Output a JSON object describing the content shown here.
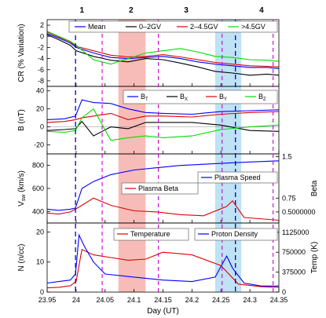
{
  "chart_data": {
    "type": "line",
    "shared_x": {
      "label": "Day (UT)",
      "range": [
        23.95,
        24.35
      ],
      "ticks": [
        "23.95",
        "24",
        "24.05",
        "24.1",
        "24.15",
        "24.2",
        "24.25",
        "24.3",
        "24.35"
      ],
      "tick_values": [
        23.95,
        24.0,
        24.05,
        24.1,
        24.15,
        24.2,
        24.25,
        24.3,
        24.35
      ]
    },
    "region_labels": [
      {
        "text": "1",
        "x": 24.01
      },
      {
        "text": "2",
        "x": 24.095
      },
      {
        "text": "3",
        "x": 24.19
      },
      {
        "text": "4",
        "x": 24.32
      }
    ],
    "shaded_intervals": [
      {
        "x": [
          24.073,
          24.12
        ],
        "color": "#f4a6a0"
      },
      {
        "x": [
          24.24,
          24.285
        ],
        "color": "#a9d8f0"
      }
    ],
    "blue_dashed_lines": [
      23.999,
      24.275
    ],
    "magenta_dashed_lines": [
      24.045,
      24.142,
      24.252,
      24.34
    ],
    "panels": [
      {
        "id": "cr",
        "ylabel": "CR (% Variation)",
        "ylim": [
          -9,
          3
        ],
        "yticks": [
          "2",
          "0",
          "-2",
          "-4",
          "-6",
          "-8"
        ],
        "ytick_values": [
          2,
          0,
          -2,
          -4,
          -6,
          -8
        ],
        "legend": [
          "Mean",
          "0–2GV",
          "2–4.5GV",
          ">4.5GV"
        ],
        "series": [
          {
            "name": "Mean",
            "color": "#0000ff",
            "x": [
              23.95,
              23.97,
              23.99,
              24.0,
              24.03,
              24.06,
              24.09,
              24.12,
              24.15,
              24.18,
              24.21,
              24.24,
              24.27,
              24.3,
              24.33,
              24.35
            ],
            "y": [
              0.5,
              -0.3,
              -1.2,
              -2.0,
              -3.0,
              -3.8,
              -4.0,
              -3.8,
              -3.6,
              -4.0,
              -4.6,
              -5.0,
              -5.3,
              -5.6,
              -5.6,
              -5.8
            ]
          },
          {
            "name": "0–2GV",
            "color": "#000000",
            "x": [
              23.95,
              23.97,
              23.99,
              24.0,
              24.03,
              24.06,
              24.09,
              24.12,
              24.15,
              24.18,
              24.21,
              24.24,
              24.27,
              24.3,
              24.33,
              24.35
            ],
            "y": [
              0.3,
              -0.6,
              -1.6,
              -2.6,
              -3.6,
              -4.3,
              -4.6,
              -4.0,
              -4.2,
              -4.8,
              -5.5,
              -6.3,
              -6.6,
              -7.0,
              -6.8,
              -7.0
            ]
          },
          {
            "name": "2–4.5GV",
            "color": "#e00000",
            "x": [
              23.95,
              23.97,
              23.99,
              24.0,
              24.03,
              24.06,
              24.09,
              24.12,
              24.15,
              24.18,
              24.21,
              24.24,
              24.27,
              24.3,
              24.33,
              24.35
            ],
            "y": [
              0.8,
              -0.1,
              -1.0,
              -1.8,
              -2.6,
              -3.4,
              -3.7,
              -3.6,
              -3.3,
              -3.7,
              -4.2,
              -4.7,
              -5.0,
              -5.3,
              -5.4,
              -5.5
            ]
          },
          {
            "name": ">4.5GV",
            "color": "#00dd00",
            "x": [
              23.95,
              23.97,
              23.99,
              24.0,
              24.03,
              24.06,
              24.09,
              24.12,
              24.15,
              24.18,
              24.21,
              24.24,
              24.27,
              24.3,
              24.33,
              24.35
            ],
            "y": [
              0.9,
              0.0,
              -0.9,
              -1.6,
              -4.2,
              -5.0,
              -4.0,
              -3.0,
              -2.6,
              -2.2,
              -2.8,
              -3.6,
              -3.8,
              -4.2,
              -4.3,
              -4.5
            ]
          }
        ]
      },
      {
        "id": "b",
        "ylabel": "B (nT)",
        "ylim": [
          -30,
          45
        ],
        "yticks": [
          "40",
          "20",
          "0",
          "-20"
        ],
        "ytick_values": [
          40,
          20,
          0,
          -20
        ],
        "legend": [
          "B_T",
          "B_X",
          "B_Y",
          "B_Z"
        ],
        "legend_display": [
          {
            "base": "B",
            "sub": "T"
          },
          {
            "base": "B",
            "sub": "X"
          },
          {
            "base": "B",
            "sub": "Y"
          },
          {
            "base": "B",
            "sub": "Z"
          }
        ],
        "series": [
          {
            "name": "B_T",
            "color": "#0000ff",
            "x": [
              23.95,
              23.98,
              23.999,
              24.01,
              24.03,
              24.06,
              24.09,
              24.12,
              24.15,
              24.2,
              24.25,
              24.3,
              24.35
            ],
            "y": [
              8,
              9,
              12,
              30,
              27,
              26,
              20,
              16,
              15,
              14,
              17,
              18,
              19
            ]
          },
          {
            "name": "B_X",
            "color": "#000000",
            "x": [
              23.95,
              23.98,
              23.999,
              24.01,
              24.03,
              24.06,
              24.09,
              24.12,
              24.15,
              24.2,
              24.25,
              24.3,
              24.35
            ],
            "y": [
              -4,
              -3,
              -2,
              6,
              -10,
              0,
              -2,
              5,
              5,
              5,
              2,
              -4,
              -5
            ]
          },
          {
            "name": "B_Y",
            "color": "#e00000",
            "x": [
              23.95,
              23.98,
              23.999,
              24.01,
              24.03,
              24.06,
              24.09,
              24.12,
              24.15,
              24.2,
              24.25,
              24.3,
              24.35
            ],
            "y": [
              5,
              6,
              8,
              10,
              12,
              15,
              8,
              12,
              12,
              11,
              14,
              16,
              17
            ]
          },
          {
            "name": "B_Z",
            "color": "#00dd00",
            "x": [
              23.95,
              23.98,
              23.999,
              24.01,
              24.03,
              24.06,
              24.09,
              24.12,
              24.15,
              24.2,
              24.25,
              24.3,
              24.35
            ],
            "y": [
              -5,
              -6,
              -4,
              10,
              20,
              -15,
              -12,
              -10,
              -12,
              -10,
              -3,
              0,
              2
            ]
          }
        ]
      },
      {
        "id": "v",
        "ylabel": "V_sw (km/s)",
        "ylim": [
          300,
          900
        ],
        "yticks": [
          "800",
          "600",
          "400"
        ],
        "ytick_values": [
          800,
          600,
          400
        ],
        "right_ylabel": "Beta",
        "right_ylim": [
          0.3,
          1.55
        ],
        "right_yticks": [
          "1.5",
          "0.75",
          "0.5000000"
        ],
        "right_ytick_values": [
          1.5,
          0.75,
          0.5
        ],
        "legend": [
          "Plasma Speed",
          "Plasma Beta"
        ],
        "series": [
          {
            "name": "Plasma Speed",
            "color": "#0000ff",
            "axis": "left",
            "x": [
              23.95,
              23.97,
              23.99,
              23.999,
              24.01,
              24.03,
              24.06,
              24.1,
              24.14,
              24.18,
              24.22,
              24.26,
              24.3,
              24.35
            ],
            "y": [
              420,
              410,
              420,
              430,
              600,
              660,
              720,
              760,
              780,
              800,
              810,
              820,
              830,
              840
            ]
          },
          {
            "name": "Plasma Beta",
            "color": "#e00000",
            "axis": "right",
            "x": [
              23.95,
              23.97,
              23.99,
              23.999,
              24.01,
              24.03,
              24.06,
              24.1,
              24.14,
              24.18,
              24.22,
              24.26,
              24.27,
              24.29,
              24.35
            ],
            "y": [
              0.48,
              0.46,
              0.5,
              0.55,
              0.62,
              0.75,
              0.62,
              0.52,
              0.5,
              0.45,
              0.43,
              0.6,
              0.7,
              0.4,
              0.35
            ]
          }
        ]
      },
      {
        "id": "n",
        "ylabel": "N (n/cc)",
        "ylim": [
          0,
          23
        ],
        "yticks": [
          "20",
          "10",
          "0"
        ],
        "ytick_values": [
          20,
          10,
          0
        ],
        "right_ylabel": "Temp (K)",
        "right_ylim": [
          0,
          1300000
        ],
        "right_yticks": [
          "1125000",
          "750000",
          "375000",
          "0"
        ],
        "right_ytick_values": [
          1125000,
          750000,
          375000,
          0
        ],
        "legend": [
          "Temperature",
          "Proton Density"
        ],
        "series": [
          {
            "name": "Temperature",
            "color": "#e00000",
            "axis": "right",
            "x": [
              23.95,
              23.97,
              23.99,
              24.0,
              24.01,
              24.03,
              24.06,
              24.09,
              24.12,
              24.15,
              24.2,
              24.25,
              24.28,
              24.32,
              24.35
            ],
            "y": [
              80000,
              90000,
              120000,
              200000,
              800000,
              700000,
              650000,
              600000,
              620000,
              750000,
              700000,
              500000,
              150000,
              100000,
              90000
            ]
          },
          {
            "name": "Proton Density",
            "color": "#0000ff",
            "axis": "left",
            "x": [
              23.95,
              23.97,
              23.99,
              23.999,
              24.005,
              24.015,
              24.03,
              24.05,
              24.1,
              24.15,
              24.2,
              24.24,
              24.26,
              24.27,
              24.29,
              24.32,
              24.35
            ],
            "y": [
              3,
              3.5,
              4,
              6,
              19,
              15,
              10,
              6,
              5,
              4,
              3.5,
              5,
              12,
              8,
              3,
              2,
              2
            ]
          }
        ]
      }
    ]
  }
}
